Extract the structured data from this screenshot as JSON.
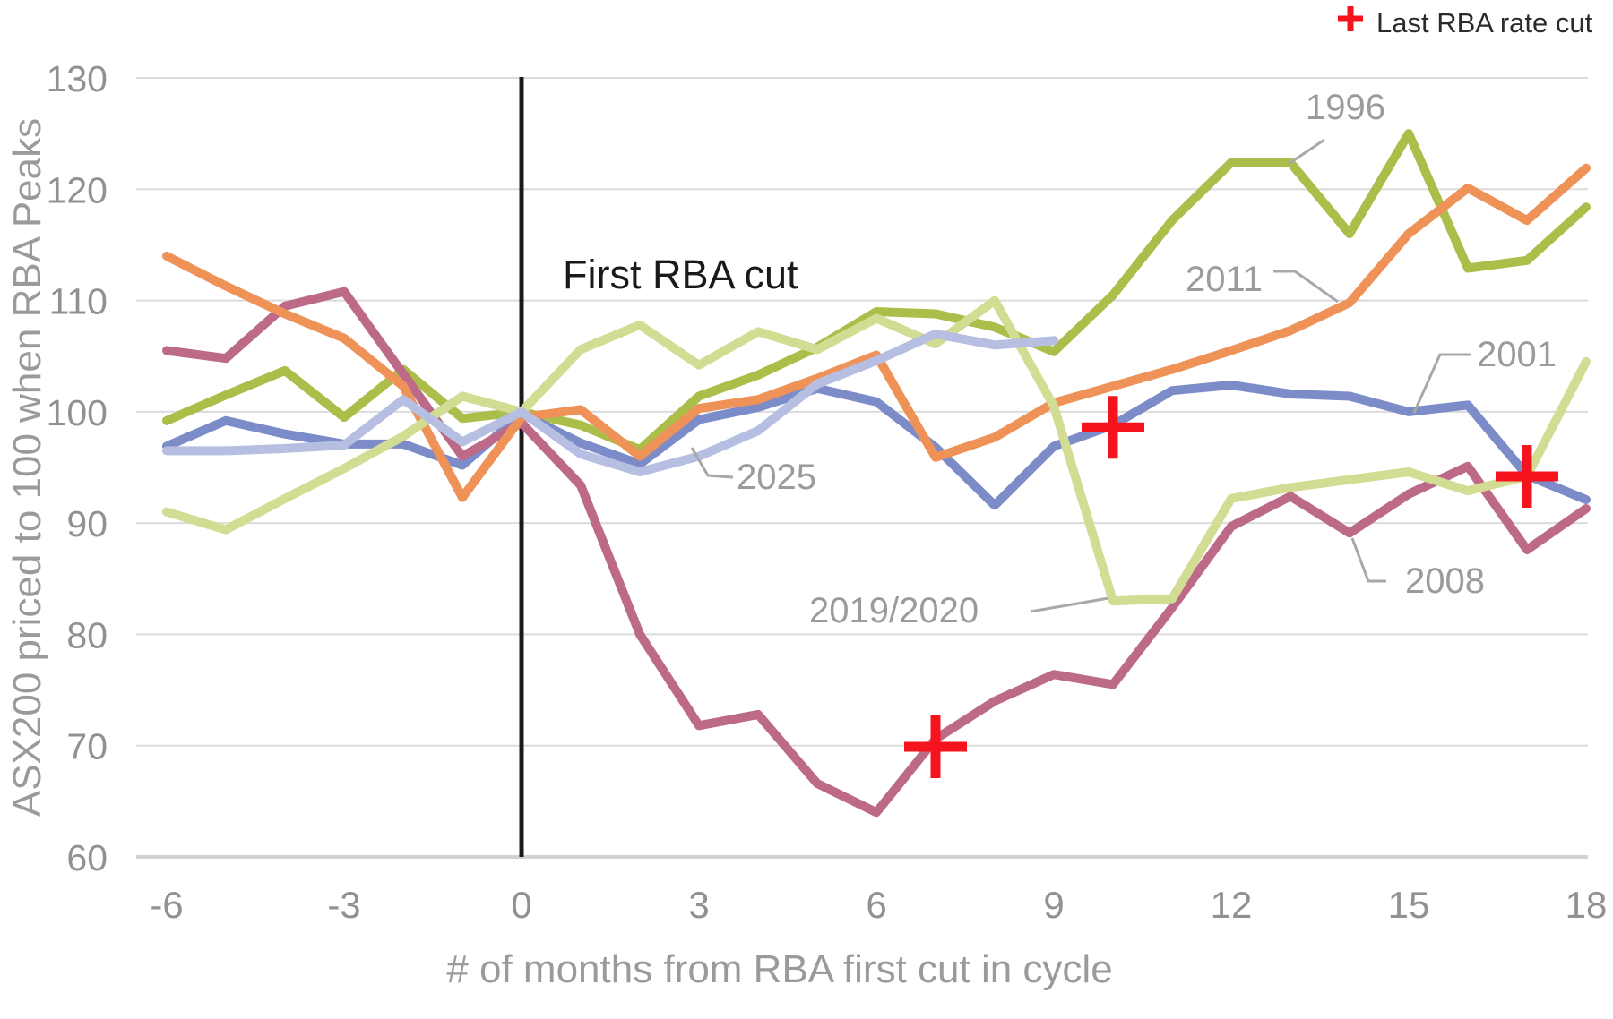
{
  "chart_data": {
    "type": "line",
    "xlabel": "# of months from RBA first cut in cycle",
    "ylabel": "ASX200 priced to 100 when RBA Peaks",
    "xlim": [
      -6,
      18
    ],
    "ylim": [
      60,
      130
    ],
    "x_ticks": [
      -6,
      -3,
      0,
      3,
      6,
      9,
      12,
      15,
      18
    ],
    "y_ticks": [
      60,
      70,
      80,
      90,
      100,
      110,
      120,
      130
    ],
    "grid": "horizontal",
    "gridline_color": "#dbdbdb",
    "x": [
      -6,
      -5,
      -4,
      -3,
      -2,
      -1,
      0,
      1,
      2,
      3,
      4,
      5,
      6,
      7,
      8,
      9,
      10,
      11,
      12,
      13,
      14,
      15,
      16,
      17,
      18
    ],
    "series": [
      {
        "name": "1996",
        "color": "#acbe4a",
        "values": [
          99.2,
          101.5,
          103.7,
          99.5,
          103.8,
          99.4,
          100,
          98.8,
          96.6,
          101.4,
          103.3,
          105.8,
          109,
          108.8,
          107.6,
          105.4,
          110.5,
          117.2,
          122.4,
          122.4,
          116,
          125,
          112.9,
          113.6,
          118.4
        ]
      },
      {
        "name": "2001",
        "color": "#7c8cc8",
        "values": [
          96.9,
          99.2,
          98,
          97.1,
          97.1,
          95.2,
          99.8,
          97.2,
          95.3,
          99.3,
          100.4,
          102.1,
          100.9,
          96.8,
          91.6,
          96.9,
          98.8,
          101.9,
          102.4,
          101.6,
          101.4,
          100,
          100.6,
          94.3,
          92.1
        ]
      },
      {
        "name": "2008",
        "color": "#bc6a88",
        "values": [
          105.5,
          104.8,
          109.5,
          110.8,
          103.4,
          96,
          99,
          93.4,
          80,
          71.8,
          72.8,
          66.6,
          64,
          70.6,
          74,
          76.4,
          75.5,
          82.4,
          89.7,
          92.4,
          89.1,
          92.6,
          95.1,
          87.6,
          91.3
        ]
      },
      {
        "name": "2011",
        "color": "#ee9258",
        "values": [
          114,
          111.3,
          108.8,
          106.6,
          102.3,
          92.3,
          99.5,
          100.2,
          96,
          100.3,
          101.1,
          103,
          105.1,
          95.9,
          97.7,
          100.8,
          102.3,
          103.8,
          105.5,
          107.3,
          109.8,
          116,
          120.1,
          117.2,
          121.9
        ]
      },
      {
        "name": "2019/2020",
        "color": "#d2dc92",
        "values": [
          91,
          89.4,
          92.2,
          94.9,
          97.8,
          101.4,
          100,
          105.6,
          107.8,
          104.2,
          107.2,
          105.6,
          108.4,
          106.1,
          110,
          100.5,
          83,
          83.2,
          92.2,
          93.2,
          93.9,
          94.6,
          92.9,
          94.2,
          104.5
        ]
      },
      {
        "name": "2025",
        "color": "#b6bee2",
        "values": [
          96.5,
          96.5,
          96.7,
          97,
          101.1,
          97.3,
          100,
          96.2,
          94.6,
          96,
          98.3,
          102.5,
          104.6,
          107,
          106,
          106.4,
          null,
          null,
          null,
          null,
          null,
          null,
          null,
          null,
          null
        ]
      }
    ],
    "event_line": {
      "x": 0,
      "label": "First RBA cut",
      "color": "#1b1b1b"
    },
    "markers": {
      "label": "Last RBA rate cut",
      "color": "#f5141e",
      "points": [
        {
          "series": "2008",
          "x": 7,
          "y": 69.9
        },
        {
          "series": "2001",
          "x": 10,
          "y": 98.6
        },
        {
          "series": "2019/2020",
          "x": 17,
          "y": 94.2
        }
      ]
    }
  }
}
